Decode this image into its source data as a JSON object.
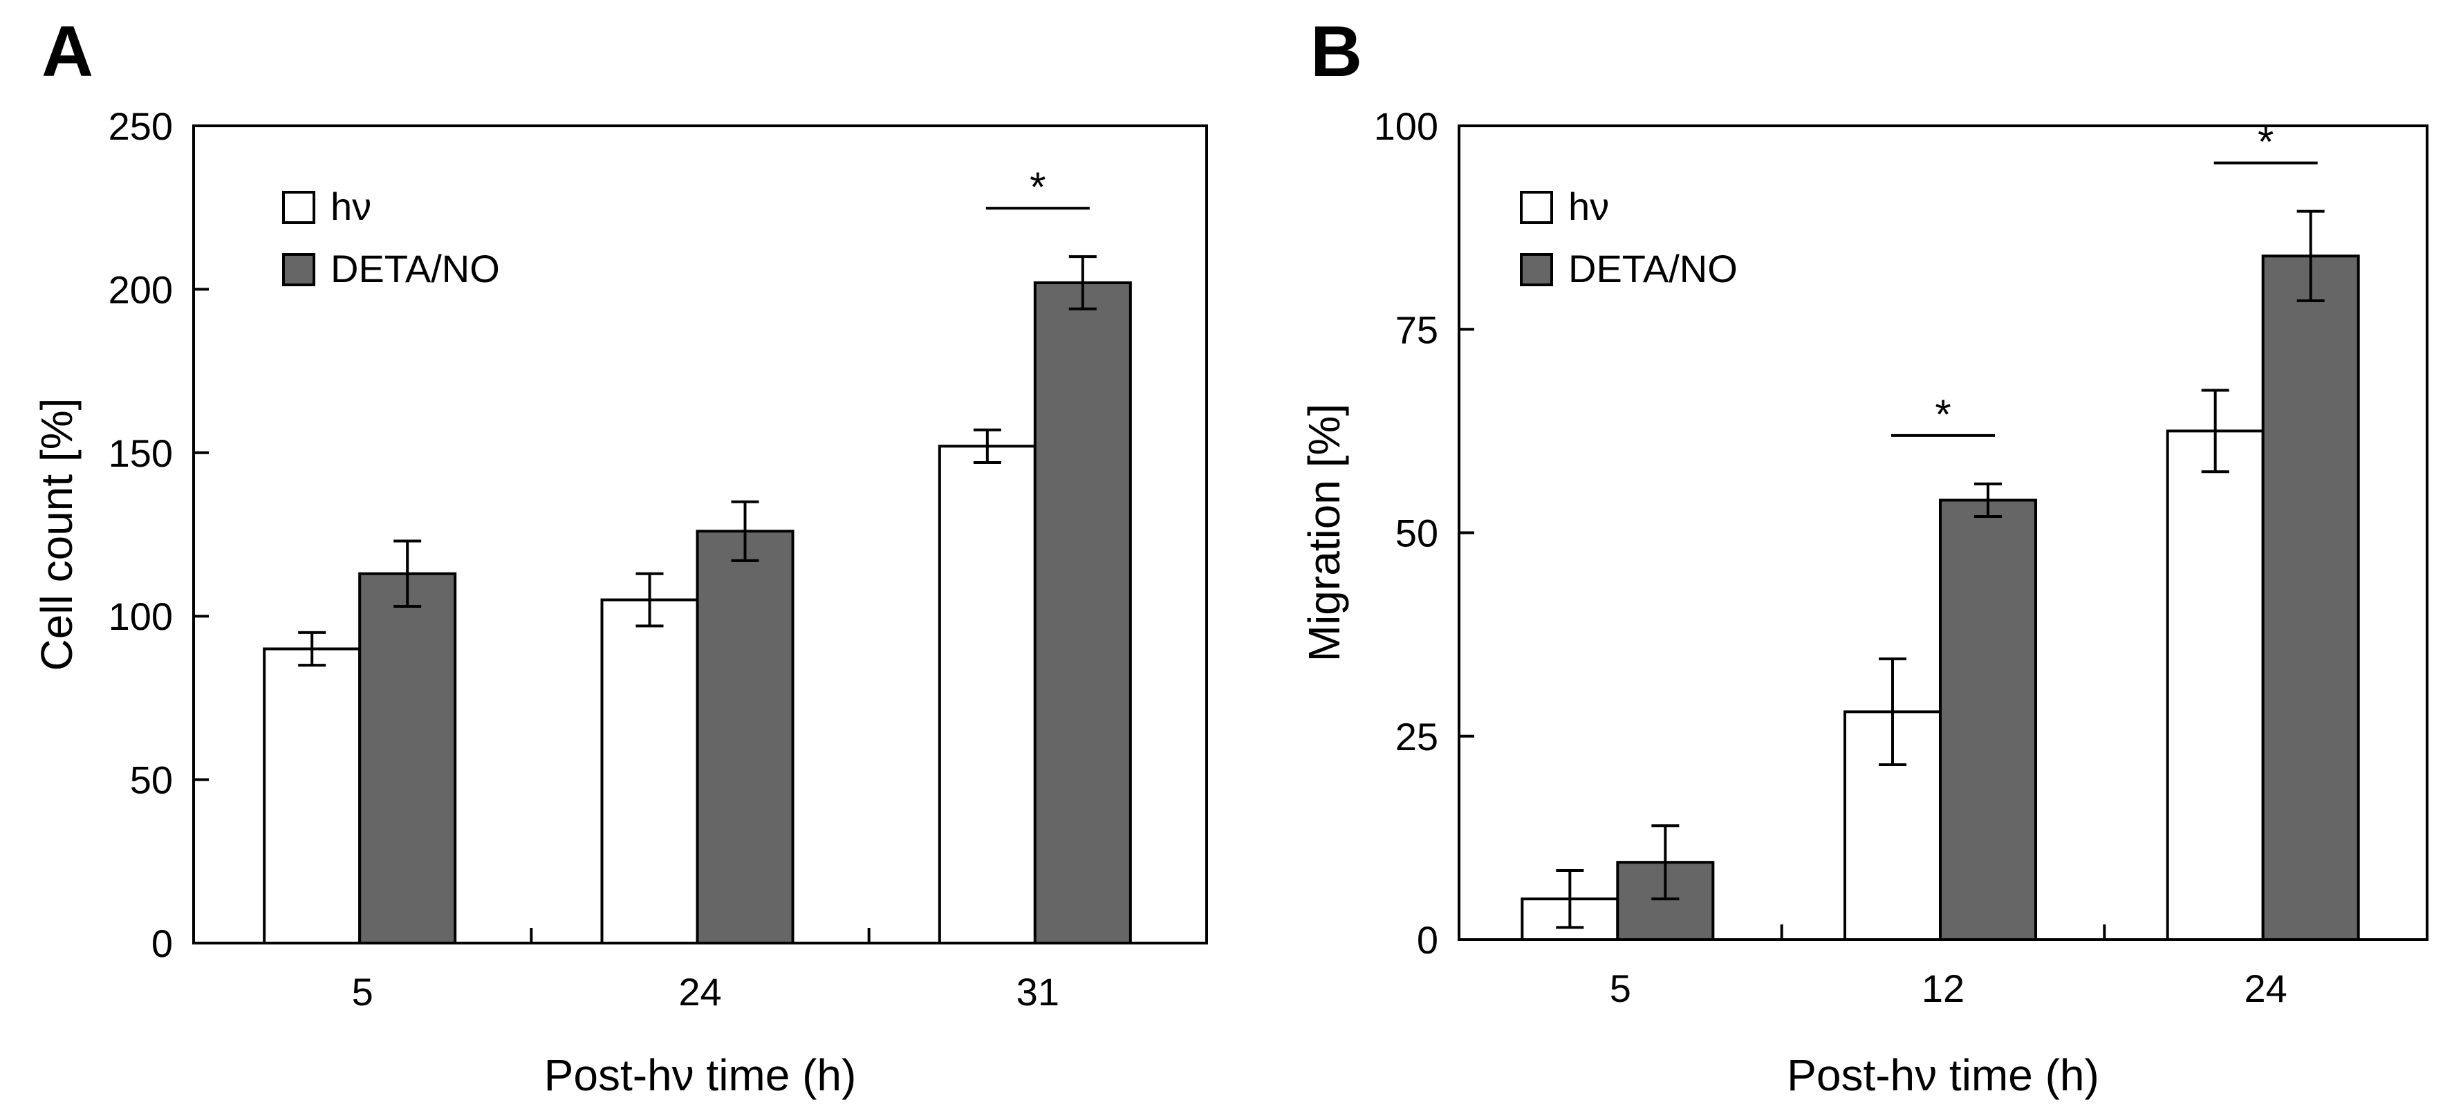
{
  "chart_data": [
    {
      "panel_label": "A",
      "type": "bar",
      "categories": [
        "5",
        "24",
        "31"
      ],
      "xlabel": "Post-hν time (h)",
      "ylabel": "Cell count [%]",
      "ylim": [
        0,
        250
      ],
      "yticks": [
        "0",
        "50",
        "100",
        "150",
        "200",
        "250"
      ],
      "grid": false,
      "legend": {
        "position": "top-left"
      },
      "series": [
        {
          "name": "hν",
          "color": "#ffffff",
          "values": [
            90,
            105,
            152
          ],
          "errors": [
            5,
            8,
            5
          ]
        },
        {
          "name": "DETA/NO",
          "color": "#666666",
          "values": [
            113,
            126,
            202
          ],
          "errors": [
            10,
            9,
            8
          ]
        }
      ],
      "significance": [
        {
          "category_index": 2,
          "label": "*"
        }
      ]
    },
    {
      "panel_label": "B",
      "type": "bar",
      "categories": [
        "5",
        "12",
        "24"
      ],
      "xlabel": "Post-hν time (h)",
      "ylabel": "Migration [%]",
      "ylim": [
        0,
        100
      ],
      "yticks": [
        "0",
        "25",
        "50",
        "75",
        "100"
      ],
      "grid": false,
      "legend": {
        "position": "top-left"
      },
      "series": [
        {
          "name": "hν",
          "color": "#ffffff",
          "values": [
            5,
            28,
            62.5
          ],
          "errors": [
            3.5,
            6.5,
            5
          ]
        },
        {
          "name": "DETA/NO",
          "color": "#666666",
          "values": [
            9.5,
            54,
            84
          ],
          "errors": [
            4.5,
            2,
            5.5
          ]
        }
      ],
      "significance": [
        {
          "category_index": 1,
          "label": "*"
        },
        {
          "category_index": 2,
          "label": "*"
        }
      ]
    }
  ]
}
